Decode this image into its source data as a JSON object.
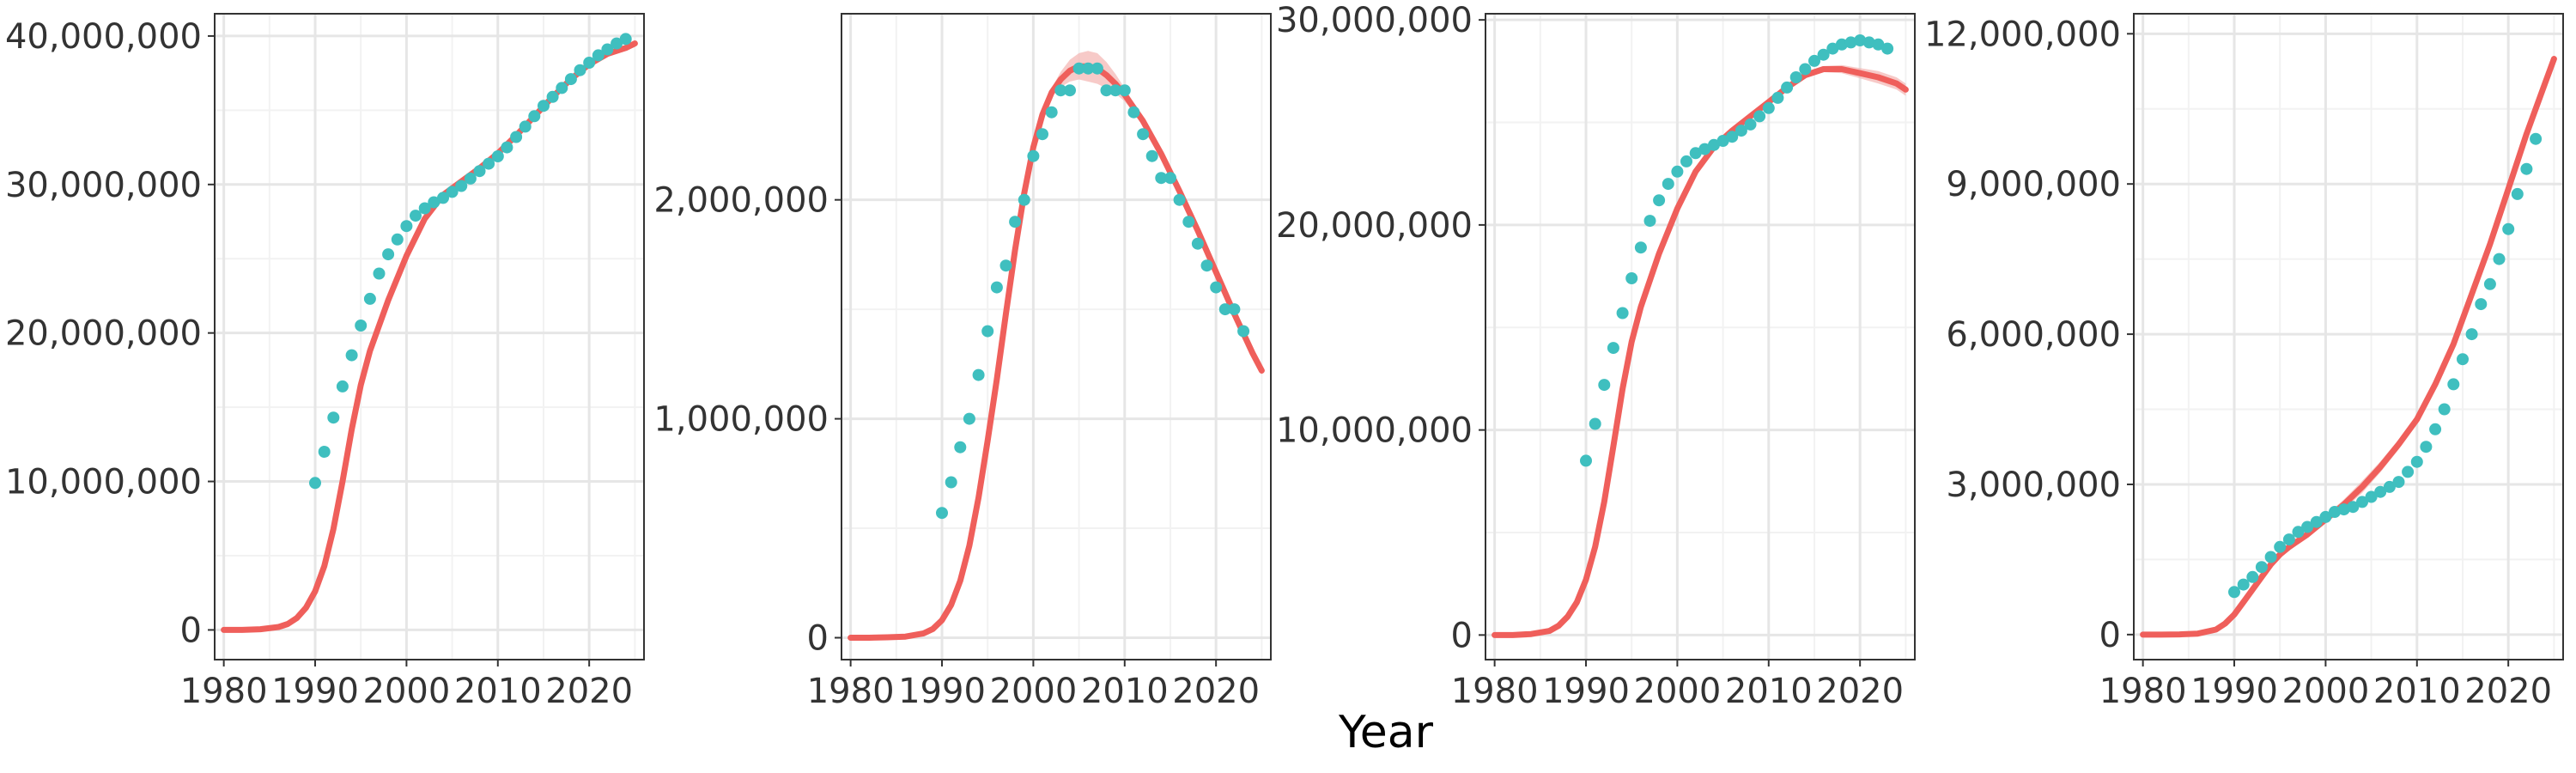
{
  "figure": {
    "xlabel": "Year"
  },
  "colors": {
    "fit_line": "#ef5f5b",
    "fit_band": "#f4b4b1",
    "observed_points": "#3fbfbf",
    "grid_major": "#e6e6e6",
    "grid_minor": "#f2f2f2",
    "panel_border": "#333333"
  },
  "chart_data": [
    {
      "type": "scatter",
      "xlim": [
        1979,
        2026
      ],
      "ylim": [
        -2000000,
        41500000
      ],
      "x_ticks": [
        1980,
        1990,
        2000,
        2010,
        2020
      ],
      "x_tick_labels": [
        "1980",
        "1990",
        "2000",
        "2010",
        "2020"
      ],
      "y_ticks": [
        0,
        10000000,
        20000000,
        30000000,
        40000000
      ],
      "y_tick_labels": [
        "0",
        "10,000,000",
        "20,000,000",
        "30,000,000",
        "40,000,000"
      ],
      "grid": true,
      "series": [
        {
          "kind": "points",
          "x": [
            1990,
            1991,
            1992,
            1993,
            1994,
            1995,
            1996,
            1997,
            1998,
            1999,
            2000,
            2001,
            2002,
            2003,
            2004,
            2005,
            2006,
            2007,
            2008,
            2009,
            2010,
            2011,
            2012,
            2013,
            2014,
            2015,
            2016,
            2017,
            2018,
            2019,
            2020,
            2021,
            2022,
            2023,
            2024
          ],
          "y": [
            9900000,
            12000000,
            14300000,
            16400000,
            18500000,
            20500000,
            22300000,
            24000000,
            25300000,
            26300000,
            27200000,
            27900000,
            28400000,
            28800000,
            29100000,
            29500000,
            29900000,
            30400000,
            30900000,
            31400000,
            31900000,
            32500000,
            33200000,
            33900000,
            34600000,
            35300000,
            35900000,
            36500000,
            37100000,
            37700000,
            38200000,
            38700000,
            39100000,
            39500000,
            39800000
          ]
        },
        {
          "kind": "fit",
          "x": [
            1980,
            1982,
            1984,
            1986,
            1987,
            1988,
            1989,
            1990,
            1991,
            1992,
            1993,
            1994,
            1995,
            1996,
            1998,
            2000,
            2002,
            2004,
            2006,
            2008,
            2010,
            2012,
            2014,
            2016,
            2018,
            2020,
            2022,
            2024,
            2025
          ],
          "y": [
            0,
            0,
            50000,
            200000,
            400000,
            800000,
            1500000,
            2600000,
            4300000,
            6800000,
            10000000,
            13500000,
            16500000,
            18800000,
            22200000,
            25200000,
            27700000,
            29300000,
            30200000,
            31100000,
            32100000,
            33300000,
            34600000,
            35900000,
            37100000,
            38100000,
            38800000,
            39200000,
            39500000
          ],
          "band": [
            0,
            0,
            0,
            0,
            0,
            0,
            0,
            0,
            0,
            0,
            0,
            0,
            0,
            0,
            0,
            0,
            0,
            0,
            0,
            0,
            0,
            0,
            0,
            0,
            0,
            0,
            0,
            150000,
            250000
          ]
        }
      ]
    },
    {
      "type": "scatter",
      "xlim": [
        1979,
        2026
      ],
      "ylim": [
        -100000,
        2850000
      ],
      "x_ticks": [
        1980,
        1990,
        2000,
        2010,
        2020
      ],
      "x_tick_labels": [
        "1980",
        "1990",
        "2000",
        "2010",
        "2020"
      ],
      "y_ticks": [
        0,
        1000000,
        2000000
      ],
      "y_tick_labels": [
        "0",
        "1,000,000",
        "2,000,000"
      ],
      "grid": true,
      "series": [
        {
          "kind": "points",
          "x": [
            1990,
            1991,
            1992,
            1993,
            1994,
            1995,
            1996,
            1997,
            1998,
            1999,
            2000,
            2001,
            2002,
            2003,
            2004,
            2005,
            2006,
            2007,
            2008,
            2009,
            2010,
            2011,
            2012,
            2013,
            2014,
            2015,
            2016,
            2017,
            2018,
            2019,
            2020,
            2021,
            2022,
            2023
          ],
          "y": [
            570000,
            710000,
            870000,
            1000000,
            1200000,
            1400000,
            1600000,
            1700000,
            1900000,
            2000000,
            2200000,
            2300000,
            2400000,
            2500000,
            2500000,
            2600000,
            2600000,
            2600000,
            2500000,
            2500000,
            2500000,
            2400000,
            2300000,
            2200000,
            2100000,
            2100000,
            2000000,
            1900000,
            1800000,
            1700000,
            1600000,
            1500000,
            1500000,
            1400000
          ]
        },
        {
          "kind": "fit",
          "x": [
            1980,
            1982,
            1984,
            1986,
            1988,
            1989,
            1990,
            1991,
            1992,
            1993,
            1994,
            1995,
            1996,
            1997,
            1998,
            1999,
            2000,
            2001,
            2002,
            2003,
            2004,
            2005,
            2006,
            2007,
            2008,
            2009,
            2010,
            2012,
            2014,
            2016,
            2018,
            2020,
            2022,
            2024,
            2025
          ],
          "y": [
            0,
            0,
            2000,
            5000,
            20000,
            40000,
            80000,
            150000,
            260000,
            420000,
            640000,
            900000,
            1180000,
            1480000,
            1770000,
            2030000,
            2240000,
            2390000,
            2490000,
            2550000,
            2590000,
            2610000,
            2610000,
            2600000,
            2570000,
            2530000,
            2480000,
            2360000,
            2210000,
            2040000,
            1860000,
            1670000,
            1480000,
            1300000,
            1220000
          ],
          "band": [
            0,
            0,
            0,
            0,
            0,
            0,
            0,
            0,
            0,
            0,
            0,
            0,
            0,
            0,
            0,
            0,
            0,
            10000,
            20000,
            35000,
            50000,
            60000,
            70000,
            70000,
            60000,
            45000,
            30000,
            15000,
            10000,
            10000,
            10000,
            10000,
            10000,
            15000,
            20000
          ]
        }
      ]
    },
    {
      "type": "scatter",
      "xlim": [
        1979,
        2026
      ],
      "ylim": [
        -1200000,
        30300000
      ],
      "x_ticks": [
        1980,
        1990,
        2000,
        2010,
        2020
      ],
      "x_tick_labels": [
        "1980",
        "1990",
        "2000",
        "2010",
        "2020"
      ],
      "y_ticks": [
        0,
        10000000,
        20000000,
        30000000
      ],
      "y_tick_labels": [
        "0",
        "10,000,000",
        "20,000,000",
        "30,000,000"
      ],
      "grid": true,
      "series": [
        {
          "kind": "points",
          "x": [
            1990,
            1991,
            1992,
            1993,
            1994,
            1995,
            1996,
            1997,
            1998,
            1999,
            2000,
            2001,
            2002,
            2003,
            2004,
            2005,
            2006,
            2007,
            2008,
            2009,
            2010,
            2011,
            2012,
            2013,
            2014,
            2015,
            2016,
            2017,
            2018,
            2019,
            2020,
            2021,
            2022,
            2023
          ],
          "y": [
            8500000,
            10300000,
            12200000,
            14000000,
            15700000,
            17400000,
            18900000,
            20200000,
            21200000,
            22000000,
            22600000,
            23100000,
            23500000,
            23700000,
            23900000,
            24100000,
            24300000,
            24600000,
            24900000,
            25300000,
            25700000,
            26200000,
            26700000,
            27200000,
            27600000,
            28000000,
            28300000,
            28600000,
            28800000,
            28900000,
            29000000,
            28900000,
            28800000,
            28600000
          ]
        },
        {
          "kind": "fit",
          "x": [
            1980,
            1982,
            1984,
            1986,
            1987,
            1988,
            1989,
            1990,
            1991,
            1992,
            1993,
            1994,
            1995,
            1996,
            1998,
            2000,
            2002,
            2004,
            2006,
            2008,
            2010,
            2012,
            2014,
            2016,
            2018,
            2020,
            2022,
            2024,
            2025
          ],
          "y": [
            0,
            0,
            50000,
            200000,
            450000,
            900000,
            1600000,
            2700000,
            4300000,
            6500000,
            9200000,
            12000000,
            14300000,
            16000000,
            18600000,
            20800000,
            22600000,
            23800000,
            24600000,
            25300000,
            26000000,
            26700000,
            27300000,
            27600000,
            27600000,
            27400000,
            27200000,
            26900000,
            26600000
          ],
          "band": [
            0,
            0,
            0,
            0,
            0,
            0,
            0,
            0,
            0,
            0,
            0,
            0,
            0,
            0,
            0,
            0,
            0,
            0,
            0,
            0,
            0,
            0,
            100000,
            150000,
            200000,
            250000,
            300000,
            300000,
            300000
          ]
        }
      ]
    },
    {
      "type": "scatter",
      "xlim": [
        1979,
        2026
      ],
      "ylim": [
        -500000,
        12400000
      ],
      "x_ticks": [
        1980,
        1990,
        2000,
        2010,
        2020
      ],
      "x_tick_labels": [
        "1980",
        "1990",
        "2000",
        "2010",
        "2020"
      ],
      "y_ticks": [
        0,
        3000000,
        6000000,
        9000000,
        12000000
      ],
      "y_tick_labels": [
        "0",
        "3,000,000",
        "6,000,000",
        "9,000,000",
        "12,000,000"
      ],
      "grid": true,
      "series": [
        {
          "kind": "points",
          "x": [
            1990,
            1991,
            1992,
            1993,
            1994,
            1995,
            1996,
            1997,
            1998,
            1999,
            2000,
            2001,
            2002,
            2003,
            2004,
            2005,
            2006,
            2007,
            2008,
            2009,
            2010,
            2011,
            2012,
            2013,
            2014,
            2015,
            2016,
            2017,
            2018,
            2019,
            2020,
            2021,
            2022,
            2023
          ],
          "y": [
            850000,
            1000000,
            1150000,
            1350000,
            1550000,
            1750000,
            1900000,
            2050000,
            2150000,
            2250000,
            2350000,
            2450000,
            2500000,
            2550000,
            2650000,
            2750000,
            2850000,
            2950000,
            3050000,
            3250000,
            3450000,
            3750000,
            4100000,
            4500000,
            5000000,
            5500000,
            6000000,
            6600000,
            7000000,
            7500000,
            8100000,
            8800000,
            9300000,
            9900000
          ]
        },
        {
          "kind": "fit",
          "x": [
            1980,
            1982,
            1984,
            1986,
            1988,
            1989,
            1990,
            1991,
            1992,
            1993,
            1994,
            1995,
            1996,
            1998,
            2000,
            2002,
            2004,
            2006,
            2008,
            2010,
            2012,
            2014,
            2016,
            2018,
            2020,
            2022,
            2024,
            2025
          ],
          "y": [
            0,
            0,
            5000,
            20000,
            100000,
            220000,
            400000,
            650000,
            900000,
            1150000,
            1400000,
            1600000,
            1750000,
            2000000,
            2300000,
            2600000,
            2950000,
            3350000,
            3800000,
            4300000,
            5000000,
            5800000,
            6800000,
            7800000,
            8900000,
            10000000,
            11000000,
            11500000
          ],
          "band": [
            0,
            0,
            0,
            0,
            0,
            0,
            0,
            0,
            0,
            0,
            0,
            0,
            50000,
            60000,
            80000,
            100000,
            120000,
            110000,
            100000,
            80000,
            60000,
            60000,
            60000,
            60000,
            60000,
            60000,
            60000,
            60000
          ]
        }
      ]
    }
  ]
}
